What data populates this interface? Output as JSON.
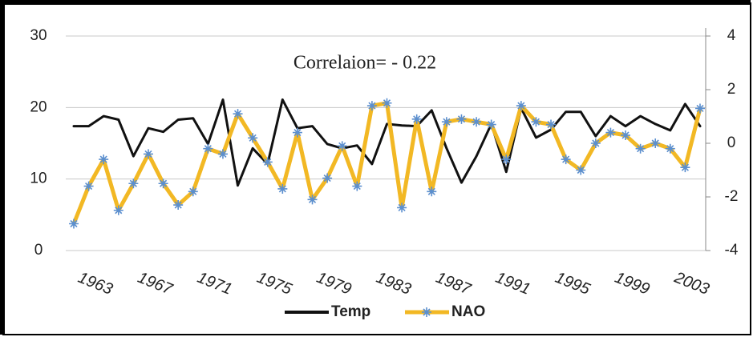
{
  "chart_data": {
    "type": "line",
    "annotation": "Correlaion= - 0.22",
    "categories": [
      null,
      "1963",
      null,
      null,
      null,
      "1967",
      null,
      null,
      null,
      "1971",
      null,
      null,
      null,
      "1975",
      null,
      null,
      null,
      "1979",
      null,
      null,
      null,
      "1983",
      null,
      null,
      null,
      "1987",
      null,
      null,
      null,
      "1991",
      null,
      null,
      null,
      "1995",
      null,
      null,
      null,
      "1999",
      null,
      null,
      null,
      "2003",
      null
    ],
    "series": [
      {
        "name": "Temp",
        "color": "#111111",
        "values": [
          17.4,
          17.4,
          18.8,
          18.3,
          13.2,
          17.1,
          16.6,
          18.3,
          18.5,
          14.9,
          21.1,
          9.1,
          14.3,
          12.1,
          21.1,
          17.1,
          17.4,
          14.9,
          14.3,
          14.7,
          12.1,
          17.7,
          17.5,
          17.4,
          19.6,
          14.3,
          9.5,
          13.2,
          17.7,
          11.0,
          19.9,
          15.8,
          16.9,
          19.4,
          19.4,
          16.0,
          18.8,
          17.4,
          18.8,
          17.7,
          16.8,
          20.5,
          17.4
        ]
      },
      {
        "name": "NAO",
        "color": "#f2b824",
        "marker_color": "#5b8fd0",
        "axis": "y2",
        "values": [
          -3.0,
          -1.6,
          -0.6,
          -2.5,
          -1.5,
          -0.4,
          -1.5,
          -2.3,
          -1.8,
          -0.2,
          -0.4,
          1.1,
          0.2,
          -0.7,
          -1.7,
          0.4,
          -2.1,
          -1.3,
          -0.1,
          -1.6,
          1.4,
          1.5,
          -2.4,
          0.9,
          -1.8,
          0.8,
          0.9,
          0.8,
          0.7,
          -0.6,
          1.4,
          0.8,
          0.7,
          -0.6,
          -1.0,
          0.0,
          0.4,
          0.3,
          -0.2,
          0.0,
          -0.2,
          -0.9,
          1.3
        ]
      }
    ],
    "ylim": [
      0,
      30
    ],
    "yticks": [
      0,
      10,
      20,
      30
    ],
    "y2lim": [
      -4,
      4
    ],
    "y2ticks": [
      -4,
      -2,
      0,
      2,
      4
    ],
    "grid": true,
    "legend": "bottom"
  }
}
